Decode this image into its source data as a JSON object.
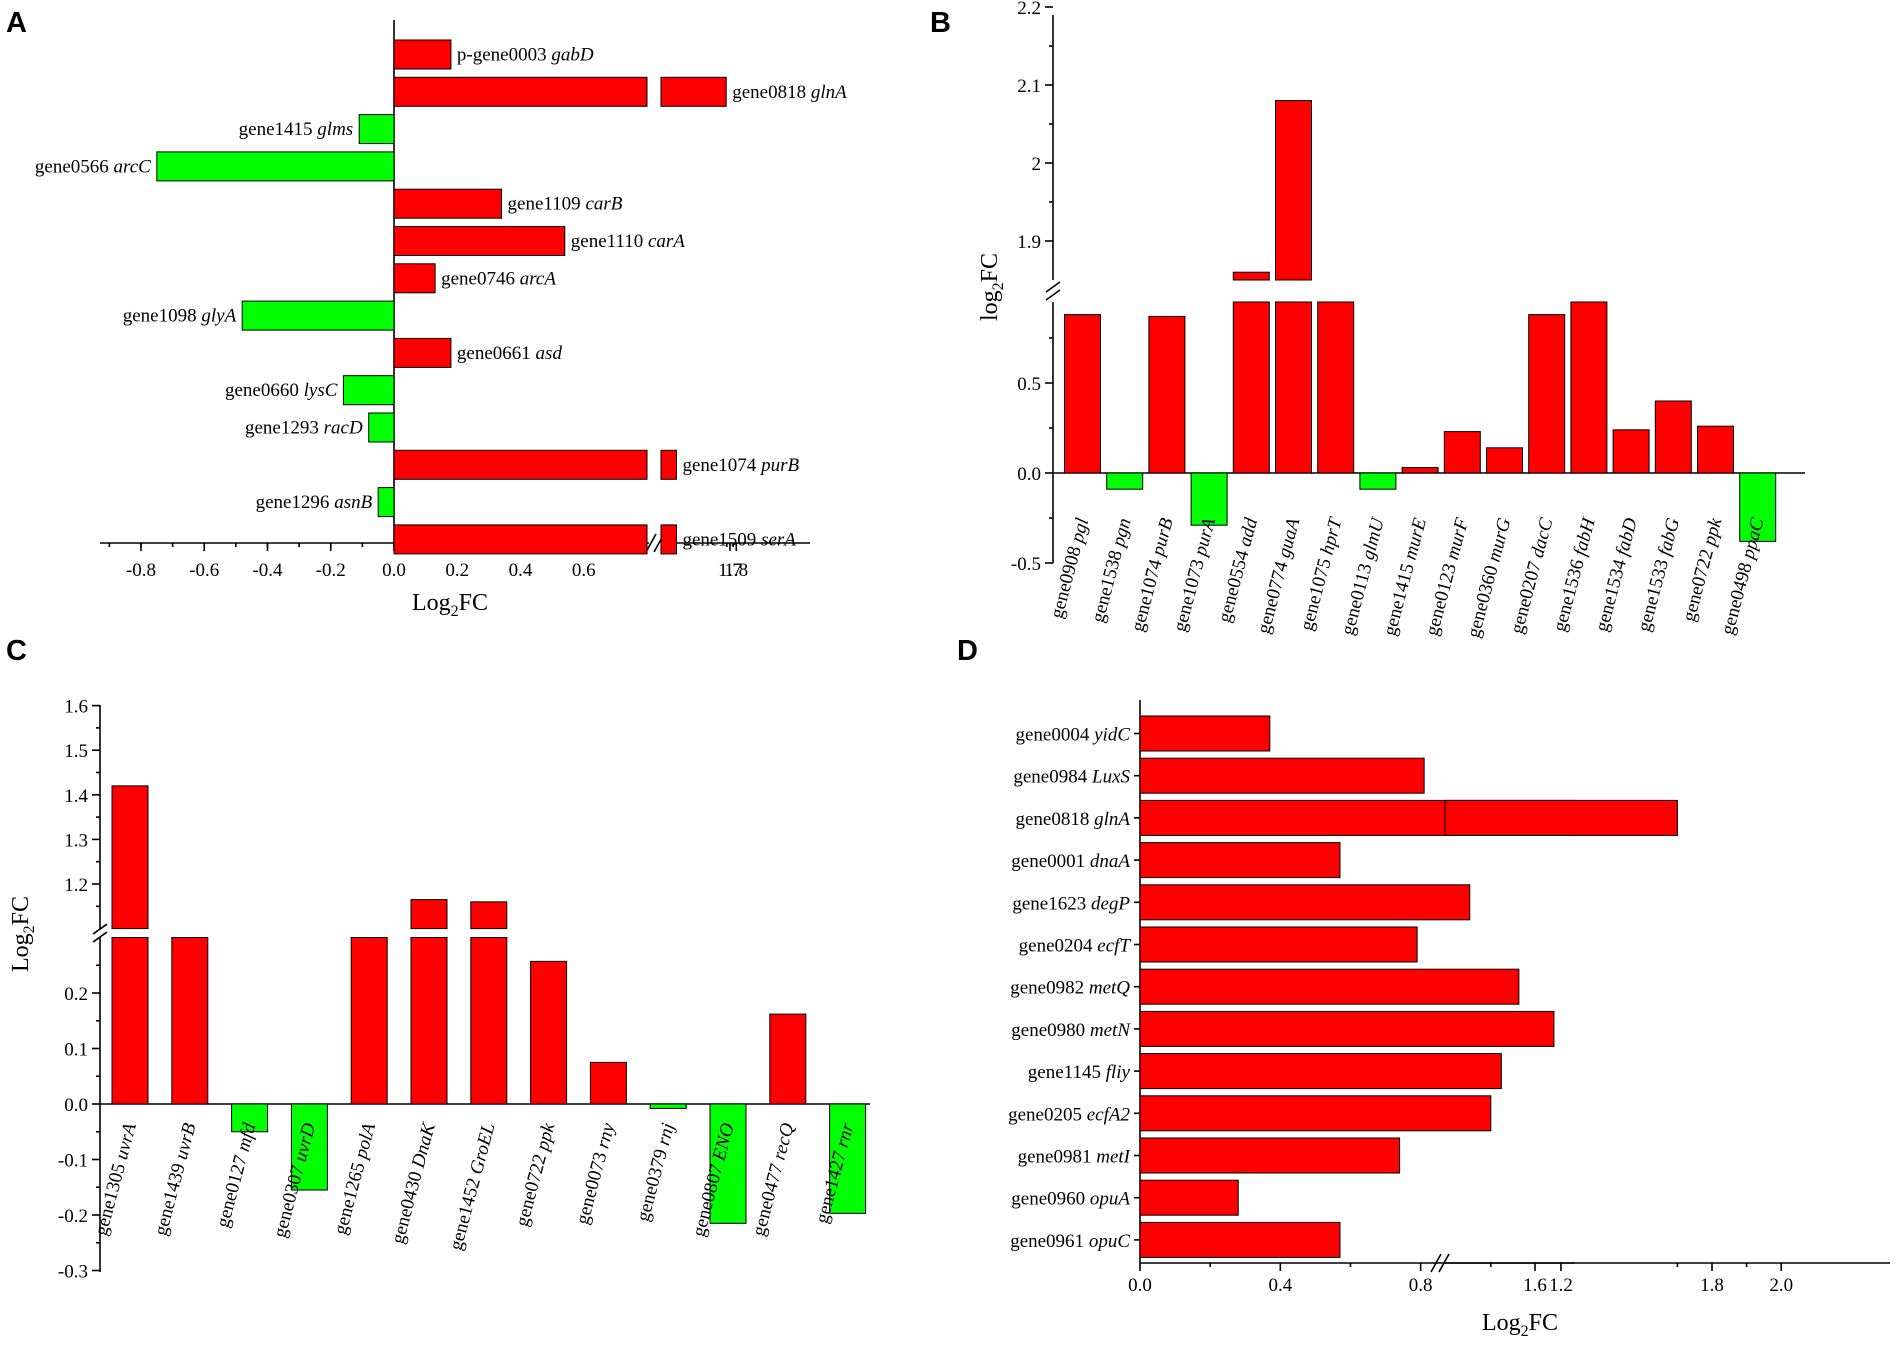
{
  "colors": {
    "up": "#ff0000",
    "down": "#00ff00",
    "axis": "#000000"
  },
  "chart_data": [
    {
      "panel": "A",
      "type": "bar",
      "orientation": "horizontal",
      "xlabel": "Log2FC",
      "xlabel_base": "Log",
      "xlabel_sub": "2",
      "xlabel_rest": "FC",
      "axis_break": [
        0.8,
        1.5
      ],
      "x_ticks": [
        "-0.8",
        "-0.6",
        "-0.4",
        "-0.2",
        "0.0",
        "0.2",
        "0.4",
        "0.6",
        "1.7",
        "1.8"
      ],
      "labels_side": "bar-end",
      "bars": [
        {
          "id": "p-gene0003",
          "gene": "gabD",
          "value": 0.18
        },
        {
          "id": "gene0818",
          "gene": "glnA",
          "value": 1.64
        },
        {
          "id": "gene1415",
          "gene": "glms",
          "value": -0.11
        },
        {
          "id": "gene0566",
          "gene": "arcC",
          "value": -0.75
        },
        {
          "id": "gene1109",
          "gene": "carB",
          "value": 0.34
        },
        {
          "id": "gene1110",
          "gene": "carA",
          "value": 0.54
        },
        {
          "id": "gene0746",
          "gene": "arcA",
          "value": 0.13
        },
        {
          "id": "gene1098",
          "gene": "glyA",
          "value": -0.48
        },
        {
          "id": "gene0661",
          "gene": "asd",
          "value": 0.18
        },
        {
          "id": "gene0660",
          "gene": "lysC",
          "value": -0.16
        },
        {
          "id": "gene1293",
          "gene": "racD",
          "value": -0.08
        },
        {
          "id": "gene1074",
          "gene": "purB",
          "value": 0.85
        },
        {
          "id": "gene1296",
          "gene": "asnB",
          "value": -0.05
        },
        {
          "id": "gene1509",
          "gene": "serA",
          "value": 0.85
        }
      ]
    },
    {
      "panel": "B",
      "type": "bar",
      "orientation": "vertical",
      "ylabel": "log2FC",
      "ylabel_base": "log",
      "ylabel_sub": "2",
      "ylabel_rest": "FC",
      "axis_break": [
        0.95,
        1.85
      ],
      "y_ticks_lower": [
        "-0.5",
        "0.0",
        "0.5"
      ],
      "y_ticks_upper": [
        "1.9",
        "2",
        "2.1",
        "2.2"
      ],
      "bars": [
        {
          "id": "gene0908",
          "gene": "pgl",
          "value": 0.88
        },
        {
          "id": "gene1538",
          "gene": "pgn",
          "value": -0.09
        },
        {
          "id": "gene1074",
          "gene": "purB",
          "value": 0.87
        },
        {
          "id": "gene1073",
          "gene": "purA",
          "value": -0.29
        },
        {
          "id": "gene0554",
          "gene": "add",
          "value": 1.86
        },
        {
          "id": "gene0774",
          "gene": "guaA",
          "value": 2.08
        },
        {
          "id": "gene1075",
          "gene": "hprT",
          "value": 1.0
        },
        {
          "id": "gene0113",
          "gene": "glmU",
          "value": -0.09
        },
        {
          "id": "gene1415",
          "gene": "murE",
          "value": 0.03
        },
        {
          "id": "gene0123",
          "gene": "murF",
          "value": 0.23
        },
        {
          "id": "gene0360",
          "gene": "murG",
          "value": 0.14
        },
        {
          "id": "gene0207",
          "gene": "dacC",
          "value": 0.88
        },
        {
          "id": "gene1536",
          "gene": "fabH",
          "value": 1.0
        },
        {
          "id": "gene1534",
          "gene": "fabD",
          "value": 0.24
        },
        {
          "id": "gene1533",
          "gene": "fabG",
          "value": 0.4
        },
        {
          "id": "gene0722",
          "gene": "ppk",
          "value": 0.26
        },
        {
          "id": "gene0498",
          "gene": "ppaC",
          "value": -0.38
        }
      ]
    },
    {
      "panel": "C",
      "type": "bar",
      "orientation": "vertical",
      "ylabel": "Log2FC",
      "ylabel_base": "Log",
      "ylabel_sub": "2",
      "ylabel_rest": "FC",
      "axis_break": [
        0.3,
        1.1
      ],
      "y_ticks_lower": [
        "-0.3",
        "-0.2",
        "-0.1",
        "0.0",
        "0.1",
        "0.2"
      ],
      "y_ticks_upper": [
        "1.2",
        "1.3",
        "1.4",
        "1.5",
        "1.6"
      ],
      "bars": [
        {
          "id": "gene1305",
          "gene": "uvrA",
          "value": 1.42
        },
        {
          "id": "gene1439",
          "gene": "uvrB",
          "value": 0.3
        },
        {
          "id": "gene0127",
          "gene": "mfd",
          "value": -0.05
        },
        {
          "id": "gene0307",
          "gene": "uvrD",
          "value": -0.155
        },
        {
          "id": "gene1265",
          "gene": "polA",
          "value": 0.3
        },
        {
          "id": "gene0430",
          "gene": "DnaK",
          "value": 1.165
        },
        {
          "id": "gene1452",
          "gene": "GroEL",
          "value": 1.16
        },
        {
          "id": "gene0722",
          "gene": "ppk",
          "value": 0.257
        },
        {
          "id": "gene0073",
          "gene": "rny",
          "value": 0.075
        },
        {
          "id": "gene0379",
          "gene": "rnj",
          "value": -0.008
        },
        {
          "id": "gene0807",
          "gene": "ENO",
          "value": -0.215
        },
        {
          "id": "gene0477",
          "gene": "recQ",
          "value": 0.162
        },
        {
          "id": "gene1427",
          "gene": "rnr",
          "value": -0.197
        }
      ]
    },
    {
      "panel": "D",
      "type": "bar",
      "orientation": "horizontal",
      "xlabel": "Log2FC",
      "xlabel_base": "Log",
      "xlabel_sub": "2",
      "xlabel_rest": "FC",
      "axis_break": [
        1.24,
        1.76
      ],
      "x_ticks": [
        "0.0",
        "0.4",
        "0.8",
        "1.2",
        "1.6",
        "1.8",
        "2.0"
      ],
      "labels_side": "left-axis",
      "bars": [
        {
          "id": "gene0004",
          "gene": "yidC",
          "value": 0.37
        },
        {
          "id": "gene0984",
          "gene": "LuxS",
          "value": 0.81
        },
        {
          "id": "gene0818",
          "gene": "glnA",
          "value": 1.7
        },
        {
          "id": "gene0001",
          "gene": "dnaA",
          "value": 0.57
        },
        {
          "id": "gene1623",
          "gene": "degP",
          "value": 0.94
        },
        {
          "id": "gene0204",
          "gene": "ecfT",
          "value": 0.79
        },
        {
          "id": "gene0982",
          "gene": "metQ",
          "value": 1.08
        },
        {
          "id": "gene0980",
          "gene": "metN",
          "value": 1.18
        },
        {
          "id": "gene1145",
          "gene": "fliy",
          "value": 1.03
        },
        {
          "id": "gene0205",
          "gene": "ecfA2",
          "value": 1.0
        },
        {
          "id": "gene0981",
          "gene": "metI",
          "value": 0.74
        },
        {
          "id": "gene0960",
          "gene": "opuA",
          "value": 0.28
        },
        {
          "id": "gene0961",
          "gene": "opuC",
          "value": 0.57
        }
      ]
    }
  ]
}
